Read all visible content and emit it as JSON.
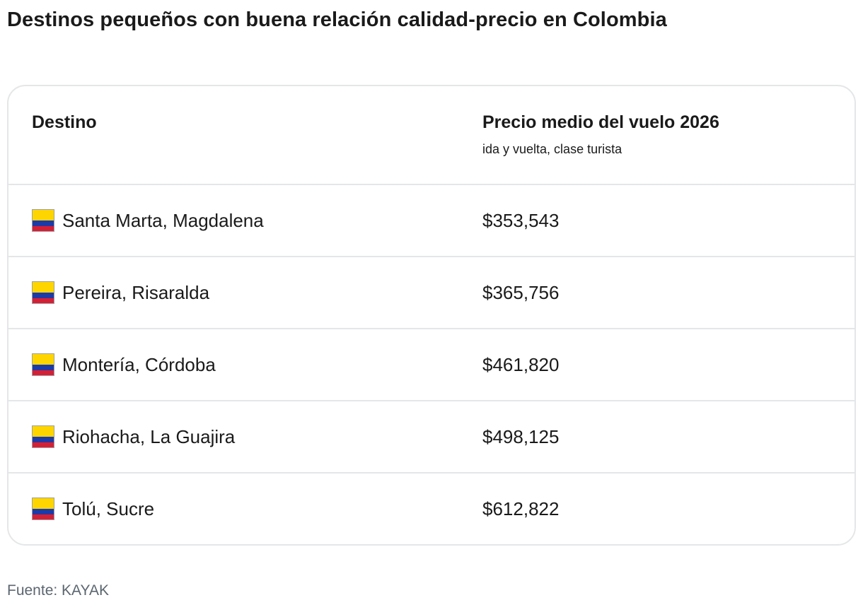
{
  "title": "Destinos pequeños con buena relación calidad-precio en Colombia",
  "table": {
    "headers": {
      "destination": "Destino",
      "price": "Precio medio del vuelo 2026",
      "price_note": "ida y vuelta, clase turista"
    },
    "rows": [
      {
        "flag_icon": "colombia-flag-icon",
        "destination": "Santa Marta, Magdalena",
        "price": "$353,543"
      },
      {
        "flag_icon": "colombia-flag-icon",
        "destination": "Pereira, Risaralda",
        "price": "$365,756"
      },
      {
        "flag_icon": "colombia-flag-icon",
        "destination": "Montería, Córdoba",
        "price": "$461,820"
      },
      {
        "flag_icon": "colombia-flag-icon",
        "destination": "Riohacha, La Guajira",
        "price": "$498,125"
      },
      {
        "flag_icon": "colombia-flag-icon",
        "destination": "Tolú, Sucre",
        "price": "$612,822"
      }
    ]
  },
  "source": "Fuente: KAYAK",
  "colors": {
    "flag_yellow": "#ffd500",
    "flag_blue": "#1d3ba8",
    "flag_red": "#d71f34",
    "border": "#e4e6e8",
    "source_text": "#5c6670"
  }
}
